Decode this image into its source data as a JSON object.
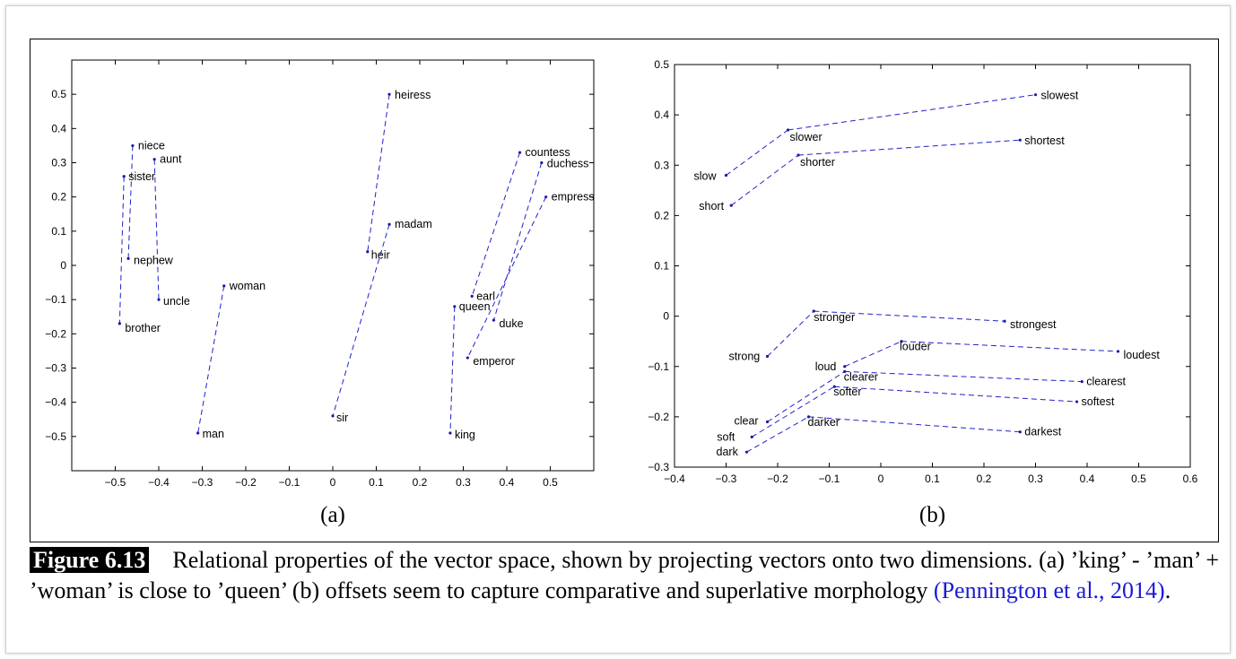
{
  "caption": {
    "figure_label": "Figure 6.13",
    "text": "Relational properties of the vector space, shown by projecting vectors onto two dimensions. (a) ’king’ - ’man’ + ’woman’ is close to ’queen’ (b) offsets seem to capture comparative and superlative morphology",
    "citation": "(Pennington et al., 2014)",
    "period": "."
  },
  "colors": {
    "line": "#2020cc",
    "point": "#1a1aa8",
    "citation": "#1a1ad6"
  },
  "chart_data": [
    {
      "type": "scatter",
      "subplot_label": "(a)",
      "xlim": [
        -0.6,
        0.6
      ],
      "ylim": [
        -0.6,
        0.6
      ],
      "xticks": [
        -0.5,
        -0.4,
        -0.3,
        -0.2,
        -0.1,
        0,
        0.1,
        0.2,
        0.3,
        0.4,
        0.5
      ],
      "yticks": [
        -0.5,
        -0.4,
        -0.3,
        -0.2,
        -0.1,
        0,
        0.1,
        0.2,
        0.3,
        0.4,
        0.5
      ],
      "tick_labels_x": [
        "−0.5",
        "−0.4",
        "−0.3",
        "−0.2",
        "−0.1",
        "0",
        "0.1",
        "0.2",
        "0.3",
        "0.4",
        "0.5"
      ],
      "tick_labels_y": [
        "−0.5",
        "−0.4",
        "−0.3",
        "−0.2",
        "−0.1",
        "0",
        "0.1",
        "0.2",
        "0.3",
        "0.4",
        "0.5"
      ],
      "points": [
        {
          "word": "niece",
          "x": -0.46,
          "y": 0.35
        },
        {
          "word": "aunt",
          "x": -0.41,
          "y": 0.31
        },
        {
          "word": "sister",
          "x": -0.48,
          "y": 0.26
        },
        {
          "word": "nephew",
          "x": -0.47,
          "y": 0.02
        },
        {
          "word": "uncle",
          "x": -0.4,
          "y": -0.1
        },
        {
          "word": "brother",
          "x": -0.49,
          "y": -0.17
        },
        {
          "word": "woman",
          "x": -0.25,
          "y": -0.06
        },
        {
          "word": "man",
          "x": -0.31,
          "y": -0.49
        },
        {
          "word": "heiress",
          "x": 0.13,
          "y": 0.5
        },
        {
          "word": "madam",
          "x": 0.13,
          "y": 0.12
        },
        {
          "word": "heir",
          "x": 0.08,
          "y": 0.04
        },
        {
          "word": "sir",
          "x": 0.0,
          "y": -0.44
        },
        {
          "word": "countess",
          "x": 0.43,
          "y": 0.33
        },
        {
          "word": "duchess",
          "x": 0.48,
          "y": 0.3
        },
        {
          "word": "empress",
          "x": 0.49,
          "y": 0.2
        },
        {
          "word": "earl",
          "x": 0.32,
          "y": -0.09
        },
        {
          "word": "queen",
          "x": 0.28,
          "y": -0.12
        },
        {
          "word": "duke",
          "x": 0.37,
          "y": -0.16
        },
        {
          "word": "emperor",
          "x": 0.31,
          "y": -0.27
        },
        {
          "word": "king",
          "x": 0.27,
          "y": -0.49
        }
      ],
      "pairs": [
        [
          "niece",
          "nephew"
        ],
        [
          "aunt",
          "uncle"
        ],
        [
          "sister",
          "brother"
        ],
        [
          "woman",
          "man"
        ],
        [
          "heiress",
          "heir"
        ],
        [
          "madam",
          "sir"
        ],
        [
          "countess",
          "earl"
        ],
        [
          "duchess",
          "duke"
        ],
        [
          "empress",
          "emperor"
        ],
        [
          "queen",
          "king"
        ]
      ]
    },
    {
      "type": "scatter",
      "subplot_label": "(b)",
      "xlim": [
        -0.4,
        0.6
      ],
      "ylim": [
        -0.3,
        0.5
      ],
      "xticks": [
        -0.4,
        -0.3,
        -0.2,
        -0.1,
        0,
        0.1,
        0.2,
        0.3,
        0.4,
        0.5,
        0.6
      ],
      "yticks": [
        -0.3,
        -0.2,
        -0.1,
        0,
        0.1,
        0.2,
        0.3,
        0.4,
        0.5
      ],
      "tick_labels_x": [
        "−0.4",
        "−0.3",
        "−0.2",
        "−0.1",
        "0",
        "0.1",
        "0.2",
        "0.3",
        "0.4",
        "0.5",
        "0.6"
      ],
      "tick_labels_y": [
        "−0.3",
        "−0.2",
        "−0.1",
        "0",
        "0.1",
        "0.2",
        "0.3",
        "0.4",
        "0.5"
      ],
      "points": [
        {
          "word": "slow",
          "x": -0.3,
          "y": 0.28
        },
        {
          "word": "slower",
          "x": -0.18,
          "y": 0.37
        },
        {
          "word": "slowest",
          "x": 0.3,
          "y": 0.44
        },
        {
          "word": "short",
          "x": -0.29,
          "y": 0.22
        },
        {
          "word": "shorter",
          "x": -0.16,
          "y": 0.32
        },
        {
          "word": "shortest",
          "x": 0.27,
          "y": 0.35
        },
        {
          "word": "strong",
          "x": -0.22,
          "y": -0.08
        },
        {
          "word": "stronger",
          "x": -0.13,
          "y": 0.01
        },
        {
          "word": "strongest",
          "x": 0.24,
          "y": -0.01
        },
        {
          "word": "loud",
          "x": -0.07,
          "y": -0.1
        },
        {
          "word": "louder",
          "x": 0.04,
          "y": -0.05
        },
        {
          "word": "loudest",
          "x": 0.46,
          "y": -0.07
        },
        {
          "word": "clear",
          "x": -0.22,
          "y": -0.21
        },
        {
          "word": "clearer",
          "x": -0.07,
          "y": -0.11
        },
        {
          "word": "clearest",
          "x": 0.39,
          "y": -0.13
        },
        {
          "word": "soft",
          "x": -0.25,
          "y": -0.24
        },
        {
          "word": "softer",
          "x": -0.09,
          "y": -0.14
        },
        {
          "word": "softest",
          "x": 0.38,
          "y": -0.17
        },
        {
          "word": "dark",
          "x": -0.26,
          "y": -0.27
        },
        {
          "word": "darker",
          "x": -0.14,
          "y": -0.2
        },
        {
          "word": "darkest",
          "x": 0.27,
          "y": -0.23
        }
      ],
      "chains": [
        [
          "slow",
          "slower",
          "slowest"
        ],
        [
          "short",
          "shorter",
          "shortest"
        ],
        [
          "strong",
          "stronger",
          "strongest"
        ],
        [
          "loud",
          "louder",
          "loudest"
        ],
        [
          "clear",
          "clearer",
          "clearest"
        ],
        [
          "soft",
          "softer",
          "softest"
        ],
        [
          "dark",
          "darker",
          "darkest"
        ]
      ]
    }
  ]
}
